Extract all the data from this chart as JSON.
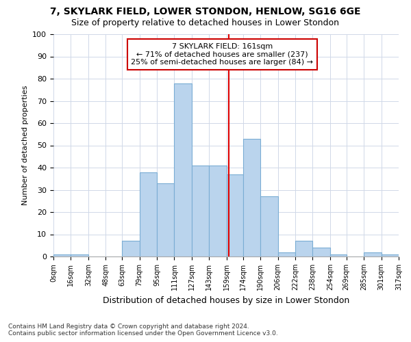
{
  "title1": "7, SKYLARK FIELD, LOWER STONDON, HENLOW, SG16 6GE",
  "title2": "Size of property relative to detached houses in Lower Stondon",
  "xlabel": "Distribution of detached houses by size in Lower Stondon",
  "ylabel": "Number of detached properties",
  "footer1": "Contains HM Land Registry data © Crown copyright and database right 2024.",
  "footer2": "Contains public sector information licensed under the Open Government Licence v3.0.",
  "annotation_title": "7 SKYLARK FIELD: 161sqm",
  "annotation_line1": "← 71% of detached houses are smaller (237)",
  "annotation_line2": "25% of semi-detached houses are larger (84) →",
  "bar_left_edges": [
    0,
    16,
    32,
    48,
    63,
    79,
    95,
    111,
    127,
    143,
    159,
    174,
    190,
    206,
    222,
    238,
    254,
    269,
    285,
    301
  ],
  "bar_widths": [
    16,
    16,
    16,
    15,
    16,
    16,
    16,
    16,
    16,
    16,
    15,
    16,
    16,
    16,
    16,
    16,
    15,
    16,
    16,
    16
  ],
  "bar_heights": [
    1,
    1,
    0,
    0,
    7,
    38,
    33,
    78,
    41,
    41,
    37,
    53,
    27,
    2,
    7,
    4,
    1,
    0,
    2,
    1
  ],
  "tick_labels": [
    "0sqm",
    "16sqm",
    "32sqm",
    "48sqm",
    "63sqm",
    "79sqm",
    "95sqm",
    "111sqm",
    "127sqm",
    "143sqm",
    "159sqm",
    "174sqm",
    "190sqm",
    "206sqm",
    "222sqm",
    "238sqm",
    "254sqm",
    "269sqm",
    "285sqm",
    "301sqm",
    "317sqm"
  ],
  "bar_color": "#bad4ed",
  "bar_edge_color": "#7aadd4",
  "vline_x": 161,
  "vline_color": "#dd0000",
  "annotation_box_edge": "#cc0000",
  "grid_color": "#d0d8e8",
  "background_color": "#ffffff",
  "ylim": [
    0,
    100
  ],
  "yticks": [
    0,
    10,
    20,
    30,
    40,
    50,
    60,
    70,
    80,
    90,
    100
  ],
  "xlim": [
    0,
    317
  ]
}
